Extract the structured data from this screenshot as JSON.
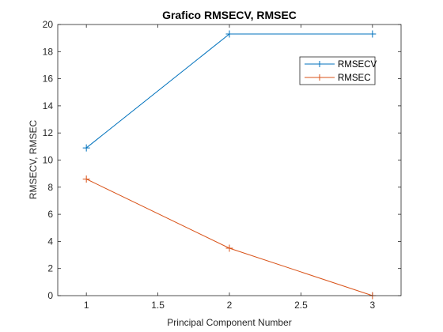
{
  "chart_data": {
    "type": "line",
    "title": "Grafico RMSECV, RMSEC",
    "xlabel": "Principal Component Number",
    "ylabel": "RMSECV, RMSEC",
    "xlim": [
      0.8,
      3.2
    ],
    "ylim": [
      0,
      20
    ],
    "x_ticks": [
      1,
      1.5,
      2,
      2.5,
      3
    ],
    "x_tick_labels": [
      "1",
      "1.5",
      "2",
      "2.5",
      "3"
    ],
    "y_ticks": [
      0,
      2,
      4,
      6,
      8,
      10,
      12,
      14,
      16,
      18,
      20
    ],
    "y_tick_labels": [
      "0",
      "2",
      "4",
      "6",
      "8",
      "10",
      "12",
      "14",
      "16",
      "18",
      "20"
    ],
    "grid": false,
    "marker": "+",
    "legend_position": "top-right",
    "x": [
      1,
      2,
      3
    ],
    "series": [
      {
        "name": "RMSECV",
        "color": "#0072BD",
        "values": [
          10.9,
          19.3,
          19.3
        ]
      },
      {
        "name": "RMSEC",
        "color": "#D95319",
        "values": [
          8.6,
          3.5,
          0.0
        ]
      }
    ]
  }
}
